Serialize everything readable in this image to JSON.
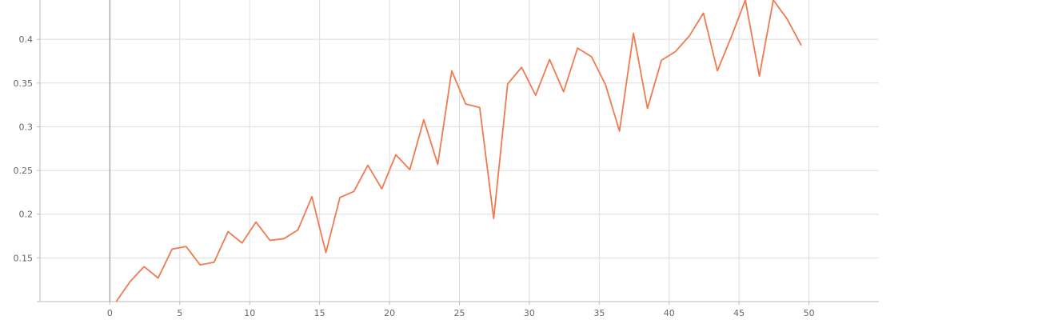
{
  "chart_data": {
    "type": "line",
    "title": "",
    "xlabel": "",
    "ylabel": "",
    "xlim": [
      -5,
      55
    ],
    "ylim": [
      0.1,
      0.445
    ],
    "x_ticks": [
      0,
      5,
      10,
      15,
      20,
      25,
      30,
      35,
      40,
      45,
      50
    ],
    "x_tick_labels": [
      "0",
      "5",
      "10",
      "15",
      "20",
      "25",
      "30",
      "35",
      "40",
      "45",
      "50"
    ],
    "y_ticks": [
      0.15,
      0.2,
      0.25,
      0.3,
      0.35,
      0.4
    ],
    "y_tick_labels": [
      "0.15",
      "0.2",
      "0.25",
      "0.3",
      "0.35",
      "0.4"
    ],
    "grid": true,
    "legend": "none",
    "colors": {
      "line": "#f07a50",
      "grid": "#dddddd",
      "axis": "#bbbbbb",
      "zero_line": "#999999",
      "tick_text": "#666666"
    },
    "series": [
      {
        "x": [
          0,
          1,
          2,
          3,
          4,
          5,
          6,
          7,
          8,
          9,
          10,
          11,
          12,
          13,
          14,
          15,
          16,
          17,
          18,
          19,
          20,
          21,
          22,
          23,
          24,
          25,
          26,
          27,
          28,
          29,
          30,
          31,
          32,
          33,
          34,
          35,
          36,
          37,
          38,
          39,
          40,
          41,
          42,
          43,
          44,
          45,
          46,
          47,
          48,
          49
        ],
        "values": [
          0.1,
          0.123,
          0.14,
          0.127,
          0.16,
          0.163,
          0.142,
          0.145,
          0.18,
          0.167,
          0.191,
          0.17,
          0.172,
          0.182,
          0.22,
          0.156,
          0.219,
          0.226,
          0.256,
          0.229,
          0.268,
          0.251,
          0.308,
          0.257,
          0.364,
          0.326,
          0.322,
          0.195,
          0.349,
          0.368,
          0.336,
          0.377,
          0.34,
          0.39,
          0.38,
          0.348,
          0.295,
          0.407,
          0.321,
          0.376,
          0.386,
          0.404,
          0.43,
          0.364,
          0.403,
          0.445,
          0.358,
          0.445,
          0.423,
          0.393
        ]
      }
    ]
  }
}
